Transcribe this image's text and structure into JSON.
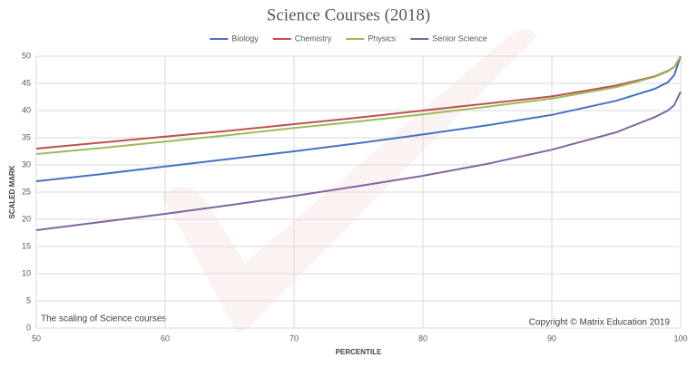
{
  "chart_data": {
    "type": "line",
    "title": "Science Courses (2018)",
    "x_label": "PERCENTILE",
    "y_label": "SCALED MARK",
    "annotations": [
      "The scaling of Science courses",
      "Copyright © Matrix Education 2019"
    ],
    "x": [
      50,
      55,
      60,
      65,
      70,
      75,
      80,
      85,
      90,
      95,
      98,
      99,
      99.5,
      100
    ],
    "series": [
      {
        "name": "Biology",
        "color": "#4472c4",
        "values": [
          27,
          28.3,
          29.7,
          31.1,
          32.5,
          34,
          35.6,
          37.3,
          39.2,
          41.8,
          44,
          45.2,
          46.5,
          50
        ]
      },
      {
        "name": "Chemistry",
        "color": "#c0504d",
        "values": [
          33,
          34.1,
          35.2,
          36.3,
          37.5,
          38.7,
          40,
          41.3,
          42.6,
          44.6,
          46.3,
          47.3,
          48,
          50
        ]
      },
      {
        "name": "Physics",
        "color": "#9bbb59",
        "values": [
          32,
          33.1,
          34.3,
          35.5,
          36.8,
          38,
          39.3,
          40.7,
          42.2,
          44.3,
          46.2,
          47.2,
          48,
          50
        ]
      },
      {
        "name": "Senior Science",
        "color": "#8064a2",
        "values": [
          18,
          19.5,
          21,
          22.6,
          24.3,
          26.1,
          28,
          30.2,
          32.8,
          36,
          38.8,
          40,
          41,
          43.5
        ]
      }
    ],
    "xlim": [
      50,
      100
    ],
    "xticks": [
      50,
      60,
      70,
      80,
      90,
      100
    ],
    "ylim": [
      0,
      50
    ],
    "yticks": [
      0,
      5,
      10,
      15,
      20,
      25,
      30,
      35,
      40,
      45,
      50
    ],
    "grid": true
  }
}
